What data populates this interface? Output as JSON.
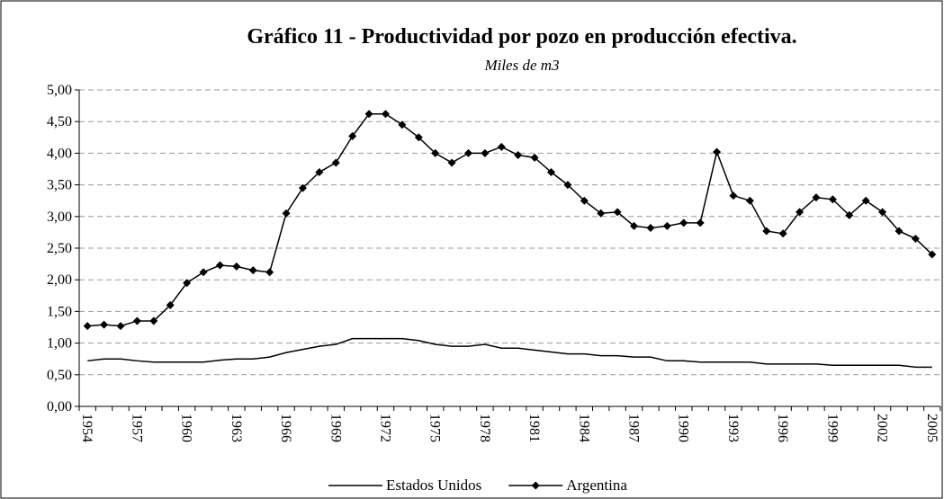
{
  "chart_data": {
    "type": "line",
    "title": "Gráfico 11 - Productividad por pozo en producción efectiva.",
    "subtitle": "Miles de m3",
    "categories": [
      "1954",
      null,
      null,
      "1957",
      null,
      null,
      "1960",
      null,
      null,
      "1963",
      null,
      null,
      "1966",
      null,
      null,
      "1969",
      null,
      null,
      "1972",
      null,
      null,
      "1975",
      null,
      null,
      "1978",
      null,
      null,
      "1981",
      null,
      null,
      "1984",
      null,
      null,
      "1987",
      null,
      null,
      "1990",
      null,
      null,
      "1993",
      null,
      null,
      "1996",
      null,
      null,
      "1999",
      null,
      null,
      "2002",
      null,
      null,
      "2005"
    ],
    "series": [
      {
        "name": "Estados Unidos",
        "color": "#000000",
        "marker": false,
        "values": [
          0.72,
          0.75,
          0.75,
          0.72,
          0.7,
          0.7,
          0.7,
          0.7,
          0.73,
          0.75,
          0.75,
          0.78,
          0.85,
          0.9,
          0.95,
          0.98,
          1.07,
          1.07,
          1.07,
          1.07,
          1.04,
          0.98,
          0.95,
          0.95,
          0.98,
          0.92,
          0.92,
          0.89,
          0.86,
          0.83,
          0.83,
          0.8,
          0.8,
          0.78,
          0.78,
          0.72,
          0.72,
          0.7,
          0.7,
          0.7,
          0.7,
          0.67,
          0.67,
          0.67,
          0.67,
          0.65,
          0.65,
          0.65,
          0.65,
          0.65,
          0.62,
          0.62
        ]
      },
      {
        "name": "Argentina",
        "color": "#000000",
        "marker": true,
        "values": [
          1.27,
          1.29,
          1.27,
          1.35,
          1.35,
          1.6,
          1.95,
          2.12,
          2.23,
          2.21,
          2.15,
          2.12,
          3.05,
          3.45,
          3.7,
          3.85,
          4.27,
          4.62,
          4.62,
          4.45,
          4.25,
          4.0,
          3.85,
          4.0,
          4.0,
          4.1,
          3.97,
          3.93,
          3.7,
          3.5,
          3.25,
          3.05,
          3.07,
          2.85,
          2.82,
          2.85,
          2.9,
          2.9,
          4.02,
          3.33,
          3.25,
          2.77,
          2.73,
          3.07,
          3.3,
          3.27,
          3.02,
          3.25,
          3.07,
          2.77,
          2.65,
          2.4
        ]
      }
    ],
    "ylim": [
      0,
      5
    ],
    "yticks": [
      {
        "value": 0,
        "label": "0,00"
      },
      {
        "value": 0.5,
        "label": "0,50"
      },
      {
        "value": 1,
        "label": "1,00"
      },
      {
        "value": 1.5,
        "label": "1,50"
      },
      {
        "value": 2,
        "label": "2,00"
      },
      {
        "value": 2.5,
        "label": "2,50"
      },
      {
        "value": 3,
        "label": "3,00"
      },
      {
        "value": 3.5,
        "label": "3,50"
      },
      {
        "value": 4,
        "label": "4,00"
      },
      {
        "value": 4.5,
        "label": "4,50"
      },
      {
        "value": 5,
        "label": "5,00"
      }
    ],
    "grid": true,
    "legend": "bottom"
  }
}
